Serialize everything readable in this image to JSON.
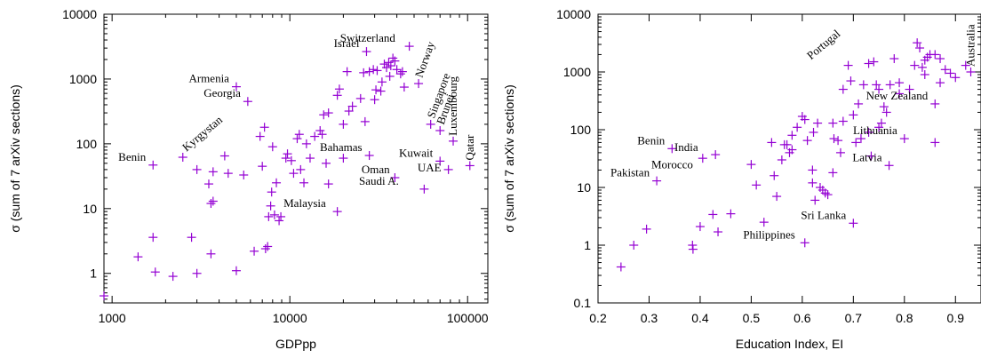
{
  "chart_data": [
    {
      "type": "scatter",
      "xscale": "log",
      "yscale": "log",
      "xlabel": "GDPpp",
      "ylabel": "σ  (sum of 7 arXiv sections)",
      "xlim": [
        900,
        130000
      ],
      "ylim": [
        0.35,
        10000
      ],
      "xticks": [
        {
          "value": 1000,
          "label": "1000"
        },
        {
          "value": 10000,
          "label": "10000"
        },
        {
          "value": 100000,
          "label": "100000"
        }
      ],
      "yticks": [
        {
          "value": 1,
          "label": "1"
        },
        {
          "value": 10,
          "label": "10"
        },
        {
          "value": 100,
          "label": "100"
        },
        {
          "value": 1000,
          "label": "1000"
        },
        {
          "value": 10000,
          "label": "10000"
        }
      ],
      "marker_color": "#9400d3",
      "annotations": [
        {
          "text": "Benin",
          "x": 1700,
          "y": 47
        },
        {
          "text": "Kyrgystan",
          "x": 2500,
          "y": 62,
          "rotate": -40
        },
        {
          "text": "Armenia",
          "x": 5000,
          "y": 760
        },
        {
          "text": "Georgia",
          "x": 5800,
          "y": 450
        },
        {
          "text": "Israel",
          "x": 27000,
          "y": 2650
        },
        {
          "text": "Switzerland",
          "x": 43000,
          "y": 3200
        },
        {
          "text": "Norway",
          "x": 53000,
          "y": 850,
          "rotate": -70
        },
        {
          "text": "Singapore",
          "x": 62000,
          "y": 200,
          "rotate": -70
        },
        {
          "text": "Brunei",
          "x": 70000,
          "y": 160,
          "rotate": -70
        },
        {
          "text": "Luxembourg",
          "x": 83000,
          "y": 110,
          "rotate": -90
        },
        {
          "text": "Bahamas",
          "x": 28000,
          "y": 66
        },
        {
          "text": "Kuwait",
          "x": 70000,
          "y": 54
        },
        {
          "text": "Oman",
          "x": 40000,
          "y": 30
        },
        {
          "text": "UAE",
          "x": 78000,
          "y": 32
        },
        {
          "text": "Saudi A.",
          "x": 45000,
          "y": 20
        },
        {
          "text": "Qatar",
          "x": 103000,
          "y": 46,
          "rotate": -90
        },
        {
          "text": "Malaysia",
          "x": 17500,
          "y": 9
        }
      ],
      "points": [
        [
          900,
          0.45
        ],
        [
          1400,
          1.8
        ],
        [
          1700,
          3.6
        ],
        [
          1750,
          1.05
        ],
        [
          2200,
          0.9
        ],
        [
          2800,
          3.6
        ],
        [
          3000,
          1.0
        ],
        [
          3600,
          2.0
        ],
        [
          5000,
          1.1
        ],
        [
          6300,
          2.2
        ],
        [
          7300,
          2.4
        ],
        [
          7500,
          2.6
        ],
        [
          1700,
          47
        ],
        [
          2500,
          62
        ],
        [
          3000,
          40
        ],
        [
          3500,
          24
        ],
        [
          3600,
          12
        ],
        [
          3700,
          13
        ],
        [
          3700,
          37
        ],
        [
          4300,
          65
        ],
        [
          4500,
          35
        ],
        [
          5500,
          33
        ],
        [
          7000,
          45
        ],
        [
          7600,
          7.5
        ],
        [
          7800,
          11
        ],
        [
          7900,
          18
        ],
        [
          8200,
          8
        ],
        [
          8400,
          25
        ],
        [
          8700,
          6.5
        ],
        [
          8900,
          7.5
        ],
        [
          9500,
          60
        ],
        [
          9700,
          70
        ],
        [
          10200,
          55
        ],
        [
          10500,
          35
        ],
        [
          11500,
          40
        ],
        [
          12000,
          25
        ],
        [
          13000,
          60
        ],
        [
          16000,
          50
        ],
        [
          16500,
          24
        ],
        [
          18500,
          9
        ],
        [
          20000,
          60
        ],
        [
          6800,
          130
        ],
        [
          7200,
          180
        ],
        [
          8000,
          90
        ],
        [
          11000,
          120
        ],
        [
          11300,
          140
        ],
        [
          12400,
          100
        ],
        [
          13800,
          130
        ],
        [
          14800,
          160
        ],
        [
          15200,
          140
        ],
        [
          15500,
          280
        ],
        [
          16500,
          300
        ],
        [
          18500,
          560
        ],
        [
          19000,
          700
        ],
        [
          20000,
          200
        ],
        [
          21000,
          1300
        ],
        [
          21500,
          320
        ],
        [
          22500,
          380
        ],
        [
          25000,
          500
        ],
        [
          26500,
          220
        ],
        [
          28000,
          1300
        ],
        [
          30000,
          480
        ],
        [
          30500,
          680
        ],
        [
          31000,
          1350
        ],
        [
          33000,
          900
        ],
        [
          34000,
          1700
        ],
        [
          35000,
          1500
        ],
        [
          36000,
          1800
        ],
        [
          37000,
          1600
        ],
        [
          38000,
          2100
        ],
        [
          40000,
          1400
        ],
        [
          42000,
          1200
        ],
        [
          44000,
          750
        ],
        [
          47000,
          3200
        ],
        [
          53000,
          850
        ],
        [
          62000,
          200
        ],
        [
          70000,
          160
        ],
        [
          83000,
          110
        ],
        [
          26000,
          1250
        ],
        [
          27000,
          2650
        ],
        [
          28000,
          66
        ],
        [
          39000,
          30
        ],
        [
          57000,
          20
        ],
        [
          70000,
          54
        ],
        [
          78000,
          40
        ],
        [
          103000,
          46
        ],
        [
          5000,
          760
        ],
        [
          5800,
          450
        ],
        [
          29500,
          1400
        ],
        [
          32500,
          650
        ],
        [
          36500,
          1100
        ],
        [
          39000,
          1900
        ],
        [
          43000,
          1300
        ]
      ]
    },
    {
      "type": "scatter",
      "xscale": "linear",
      "yscale": "log",
      "xlabel": "Education Index,  EI",
      "ylabel": "σ  (sum of 7 arXiv sections)",
      "xlim": [
        0.2,
        0.95
      ],
      "ylim": [
        0.1,
        10000
      ],
      "xticks": [
        {
          "value": 0.2,
          "label": "0.2"
        },
        {
          "value": 0.3,
          "label": "0.3"
        },
        {
          "value": 0.4,
          "label": "0.4"
        },
        {
          "value": 0.5,
          "label": "0.5"
        },
        {
          "value": 0.6,
          "label": "0.6"
        },
        {
          "value": 0.7,
          "label": "0.7"
        },
        {
          "value": 0.8,
          "label": "0.8"
        },
        {
          "value": 0.9,
          "label": "0.9"
        }
      ],
      "yticks": [
        {
          "value": 0.1,
          "label": "0.1"
        },
        {
          "value": 1,
          "label": "1"
        },
        {
          "value": 10,
          "label": "10"
        },
        {
          "value": 100,
          "label": "100"
        },
        {
          "value": 1000,
          "label": "1000"
        },
        {
          "value": 10000,
          "label": "10000"
        }
      ],
      "marker_color": "#9400d3",
      "annotations": [
        {
          "text": "Benin",
          "x": 0.345,
          "y": 47
        },
        {
          "text": "India",
          "x": 0.41,
          "y": 36
        },
        {
          "text": "Pakistan",
          "x": 0.315,
          "y": 13
        },
        {
          "text": "Morocco",
          "x": 0.4,
          "y": 18
        },
        {
          "text": "Portugal",
          "x": 0.61,
          "y": 1300,
          "rotate": -40
        },
        {
          "text": "Australia",
          "x": 0.93,
          "y": 1000,
          "rotate": -90
        },
        {
          "text": "New Zealand",
          "x": 0.86,
          "y": 280
        },
        {
          "text": "Lithuania",
          "x": 0.8,
          "y": 70
        },
        {
          "text": "Latvia",
          "x": 0.77,
          "y": 24
        },
        {
          "text": "Sri Lanka",
          "x": 0.7,
          "y": 2.4
        },
        {
          "text": "Philippines",
          "x": 0.6,
          "y": 1.1
        }
      ],
      "points": [
        [
          0.245,
          0.42
        ],
        [
          0.27,
          1.0
        ],
        [
          0.295,
          1.9
        ],
        [
          0.315,
          13
        ],
        [
          0.345,
          47
        ],
        [
          0.385,
          1.0
        ],
        [
          0.386,
          0.85
        ],
        [
          0.4,
          2.1
        ],
        [
          0.405,
          32
        ],
        [
          0.425,
          3.4
        ],
        [
          0.43,
          37
        ],
        [
          0.435,
          1.7
        ],
        [
          0.46,
          3.5
        ],
        [
          0.5,
          25
        ],
        [
          0.51,
          11
        ],
        [
          0.525,
          2.5
        ],
        [
          0.54,
          60
        ],
        [
          0.545,
          16
        ],
        [
          0.55,
          7
        ],
        [
          0.56,
          30
        ],
        [
          0.565,
          55
        ],
        [
          0.57,
          55
        ],
        [
          0.575,
          40
        ],
        [
          0.58,
          80
        ],
        [
          0.59,
          110
        ],
        [
          0.6,
          170
        ],
        [
          0.605,
          1.1
        ],
        [
          0.605,
          150
        ],
        [
          0.61,
          65
        ],
        [
          0.62,
          12
        ],
        [
          0.622,
          90
        ],
        [
          0.625,
          6
        ],
        [
          0.63,
          130
        ],
        [
          0.635,
          10
        ],
        [
          0.64,
          9
        ],
        [
          0.645,
          8
        ],
        [
          0.65,
          7.5
        ],
        [
          0.66,
          130
        ],
        [
          0.662,
          70
        ],
        [
          0.67,
          65
        ],
        [
          0.675,
          40
        ],
        [
          0.68,
          500
        ],
        [
          0.69,
          1300
        ],
        [
          0.695,
          700
        ],
        [
          0.7,
          2.4
        ],
        [
          0.705,
          60
        ],
        [
          0.71,
          280
        ],
        [
          0.715,
          70
        ],
        [
          0.72,
          600
        ],
        [
          0.73,
          1400
        ],
        [
          0.735,
          35
        ],
        [
          0.74,
          1500
        ],
        [
          0.745,
          600
        ],
        [
          0.75,
          500
        ],
        [
          0.755,
          130
        ],
        [
          0.76,
          250
        ],
        [
          0.765,
          200
        ],
        [
          0.77,
          24
        ],
        [
          0.772,
          600
        ],
        [
          0.78,
          1700
        ],
        [
          0.79,
          650
        ],
        [
          0.8,
          70
        ],
        [
          0.81,
          500
        ],
        [
          0.82,
          1300
        ],
        [
          0.825,
          3200
        ],
        [
          0.83,
          2600
        ],
        [
          0.835,
          1200
        ],
        [
          0.84,
          1600
        ],
        [
          0.845,
          1800
        ],
        [
          0.85,
          2000
        ],
        [
          0.86,
          2000
        ],
        [
          0.87,
          650
        ],
        [
          0.88,
          1100
        ],
        [
          0.89,
          950
        ],
        [
          0.9,
          800
        ],
        [
          0.92,
          1300
        ],
        [
          0.93,
          1000
        ],
        [
          0.86,
          280
        ],
        [
          0.86,
          60
        ],
        [
          0.58,
          45
        ],
        [
          0.62,
          20
        ],
        [
          0.66,
          18
        ],
        [
          0.68,
          140
        ],
        [
          0.7,
          180
        ],
        [
          0.73,
          90
        ],
        [
          0.75,
          110
        ],
        [
          0.79,
          420
        ],
        [
          0.84,
          900
        ],
        [
          0.87,
          1700
        ]
      ]
    }
  ]
}
